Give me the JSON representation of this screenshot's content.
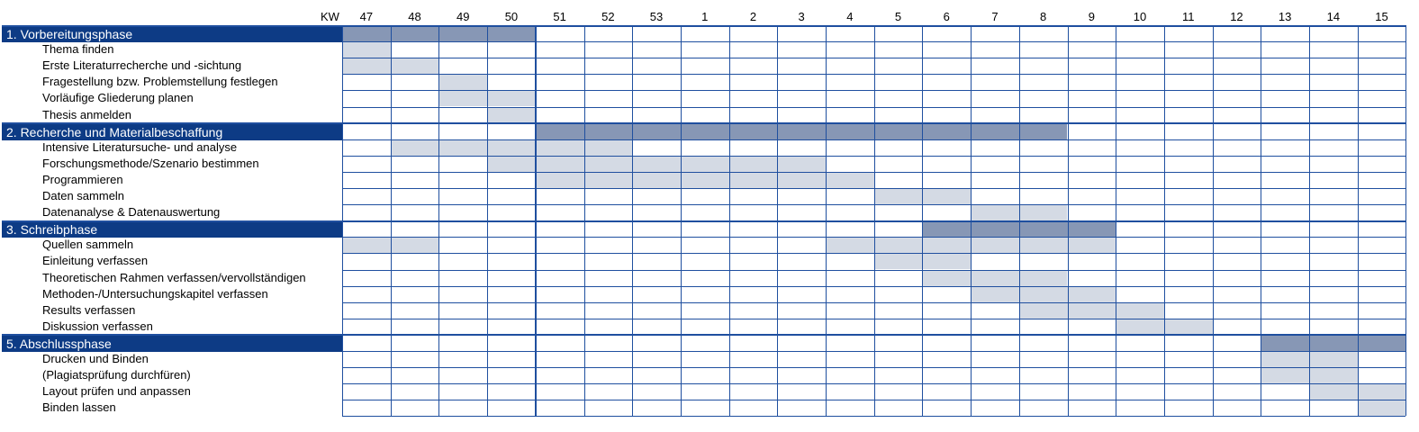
{
  "header": {
    "kw_label": "KW",
    "weeks": [
      "47",
      "48",
      "49",
      "50",
      "51",
      "52",
      "53",
      "1",
      "2",
      "3",
      "4",
      "5",
      "6",
      "7",
      "8",
      "9",
      "10",
      "11",
      "12",
      "13",
      "14",
      "15"
    ]
  },
  "colors": {
    "phase_label_bg": "#0d3b85",
    "phase_bar": "#8797b5",
    "task_bar": "#d4dae4",
    "grid_line": "#1f4f9f"
  },
  "rows": [
    {
      "type": "phase",
      "label": "1. Vorbereitungsphase",
      "start": 0,
      "end": 3
    },
    {
      "type": "task",
      "label": "Thema finden",
      "start": 0,
      "end": 0
    },
    {
      "type": "task",
      "label": "Erste Literaturrecherche und -sichtung",
      "start": 0,
      "end": 1
    },
    {
      "type": "task",
      "label": "Fragestellung bzw. Problemstellung festlegen",
      "start": 2,
      "end": 2
    },
    {
      "type": "task",
      "label": "Vorläufige Gliederung planen",
      "start": 2,
      "end": 3
    },
    {
      "type": "task",
      "label": "Thesis anmelden",
      "start": 3,
      "end": 3
    },
    {
      "type": "phase",
      "label": "2. Recherche und Materialbeschaffung",
      "start": 4,
      "end": 14
    },
    {
      "type": "task",
      "label": "Intensive Literatursuche- und analyse",
      "start": 1,
      "end": 5
    },
    {
      "type": "task",
      "label": "Forschungsmethode/Szenario bestimmen",
      "start": 3,
      "end": 9
    },
    {
      "type": "task",
      "label": "Programmieren",
      "start": 4,
      "end": 10
    },
    {
      "type": "task",
      "label": "Daten sammeln",
      "start": 11,
      "end": 12
    },
    {
      "type": "task",
      "label": "Datenanalyse & Datenauswertung",
      "start": 13,
      "end": 14
    },
    {
      "type": "phase",
      "label": "3. Schreibphase",
      "start": 12,
      "end": 15
    },
    {
      "type": "task",
      "label": "Quellen sammeln",
      "start": 0,
      "end": 1,
      "start2": 10,
      "end2": 15
    },
    {
      "type": "task",
      "label": "Einleitung verfassen",
      "start": 11,
      "end": 12
    },
    {
      "type": "task",
      "label": "Theoretischen Rahmen verfassen/vervollständigen",
      "start": 12,
      "end": 14
    },
    {
      "type": "task",
      "label": "Methoden-/Untersuchungskapitel verfassen",
      "start": 13,
      "end": 15
    },
    {
      "type": "task",
      "label": "Results verfassen",
      "start": 14,
      "end": 16
    },
    {
      "type": "task",
      "label": "Diskussion verfassen",
      "start": 16,
      "end": 17
    },
    {
      "type": "phase",
      "label": "5. Abschlussphase",
      "start": 19,
      "end": 21
    },
    {
      "type": "task",
      "label": "Drucken und Binden",
      "start": 19,
      "end": 20
    },
    {
      "type": "task",
      "label": "(Plagiatsprüfung durchfüren)",
      "start": 19,
      "end": 20
    },
    {
      "type": "task",
      "label": "Layout prüfen und anpassen",
      "start": 20,
      "end": 21
    },
    {
      "type": "task",
      "label": "Binden lassen",
      "start": 21,
      "end": 21
    }
  ]
}
